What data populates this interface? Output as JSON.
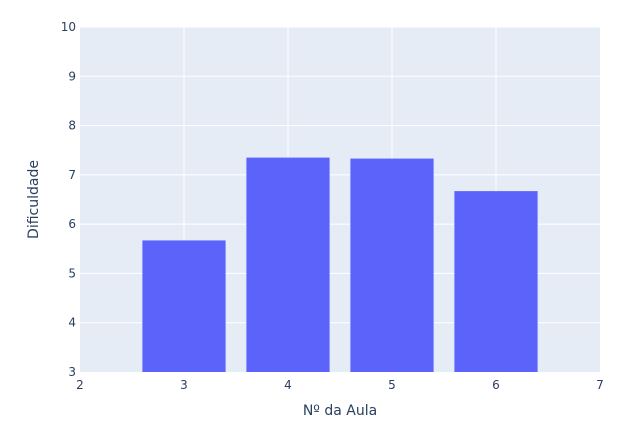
{
  "chart_data": {
    "type": "bar",
    "x": [
      3,
      4,
      5,
      6
    ],
    "values": [
      5.67,
      7.35,
      7.33,
      6.67
    ],
    "xlabel": "Nº da Aula",
    "ylabel": "Dificuldade",
    "xlim": [
      2,
      7
    ],
    "ylim": [
      3,
      10
    ],
    "xticks": [
      "2",
      "3",
      "4",
      "5",
      "6",
      "7"
    ],
    "yticks": [
      "3",
      "4",
      "5",
      "6",
      "7",
      "8",
      "9",
      "10"
    ],
    "grid": true,
    "colors": {
      "bar": "#5b63fb",
      "plot_bg": "#e5ecf6",
      "grid": "#ffffff",
      "text": "#2a3f5f"
    }
  }
}
